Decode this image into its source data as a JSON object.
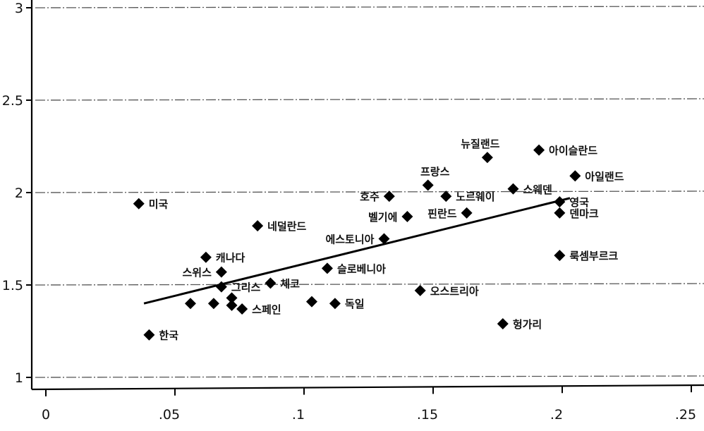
{
  "chart_data": {
    "type": "scatter",
    "title": "",
    "xlabel": "",
    "ylabel": "",
    "xlim": [
      0,
      0.25
    ],
    "ylim": [
      1,
      3
    ],
    "grid": "horizontal",
    "x_ticks": [
      {
        "value": 0,
        "label": "0"
      },
      {
        "value": 0.05,
        "label": ".05"
      },
      {
        "value": 0.1,
        "label": ".1"
      },
      {
        "value": 0.15,
        "label": ".15"
      },
      {
        "value": 0.2,
        "label": ".2"
      },
      {
        "value": 0.25,
        "label": ".25"
      }
    ],
    "y_ticks": [
      {
        "value": 1,
        "label": "1"
      },
      {
        "value": 1.5,
        "label": "1.5"
      },
      {
        "value": 2,
        "label": "2"
      },
      {
        "value": 2.5,
        "label": "2.5"
      },
      {
        "value": 3,
        "label": "3"
      }
    ],
    "points": [
      {
        "label": "미국",
        "x": 0.036,
        "y": 1.94
      },
      {
        "label": "한국",
        "x": 0.04,
        "y": 1.23
      },
      {
        "label": "캐나다",
        "x": 0.062,
        "y": 1.65
      },
      {
        "label": "스위스",
        "x": 0.068,
        "y": 1.57
      },
      {
        "label": "그리스",
        "x": 0.068,
        "y": 1.49
      },
      {
        "label": "",
        "x": 0.056,
        "y": 1.4
      },
      {
        "label": "",
        "x": 0.065,
        "y": 1.4
      },
      {
        "label": "",
        "x": 0.072,
        "y": 1.39
      },
      {
        "label": "",
        "x": 0.072,
        "y": 1.43
      },
      {
        "label": "스페인",
        "x": 0.076,
        "y": 1.37
      },
      {
        "label": "네덜란드",
        "x": 0.082,
        "y": 1.82
      },
      {
        "label": "체코",
        "x": 0.087,
        "y": 1.51
      },
      {
        "label": "",
        "x": 0.103,
        "y": 1.41
      },
      {
        "label": "슬로베니아",
        "x": 0.109,
        "y": 1.59
      },
      {
        "label": "독일",
        "x": 0.112,
        "y": 1.4
      },
      {
        "label": "에스토니아",
        "x": 0.131,
        "y": 1.75
      },
      {
        "label": "호주",
        "x": 0.133,
        "y": 1.98
      },
      {
        "label": "벨기에",
        "x": 0.14,
        "y": 1.87
      },
      {
        "label": "오스트리아",
        "x": 0.145,
        "y": 1.47
      },
      {
        "label": "프랑스",
        "x": 0.148,
        "y": 2.04
      },
      {
        "label": "노르웨이",
        "x": 0.155,
        "y": 1.98
      },
      {
        "label": "핀란드",
        "x": 0.163,
        "y": 1.89
      },
      {
        "label": "뉴질랜드",
        "x": 0.171,
        "y": 2.19
      },
      {
        "label": "헝가리",
        "x": 0.177,
        "y": 1.29
      },
      {
        "label": "스웨덴",
        "x": 0.181,
        "y": 2.02
      },
      {
        "label": "아이슬란드",
        "x": 0.191,
        "y": 2.23
      },
      {
        "label": "영국",
        "x": 0.199,
        "y": 1.95
      },
      {
        "label": "덴마크",
        "x": 0.199,
        "y": 1.89
      },
      {
        "label": "룩셈부르크",
        "x": 0.199,
        "y": 1.66
      },
      {
        "label": "아일랜드",
        "x": 0.205,
        "y": 2.09
      }
    ],
    "fit_line": {
      "x1": 0.038,
      "y1": 1.4,
      "x2": 0.203,
      "y2": 1.97
    }
  }
}
